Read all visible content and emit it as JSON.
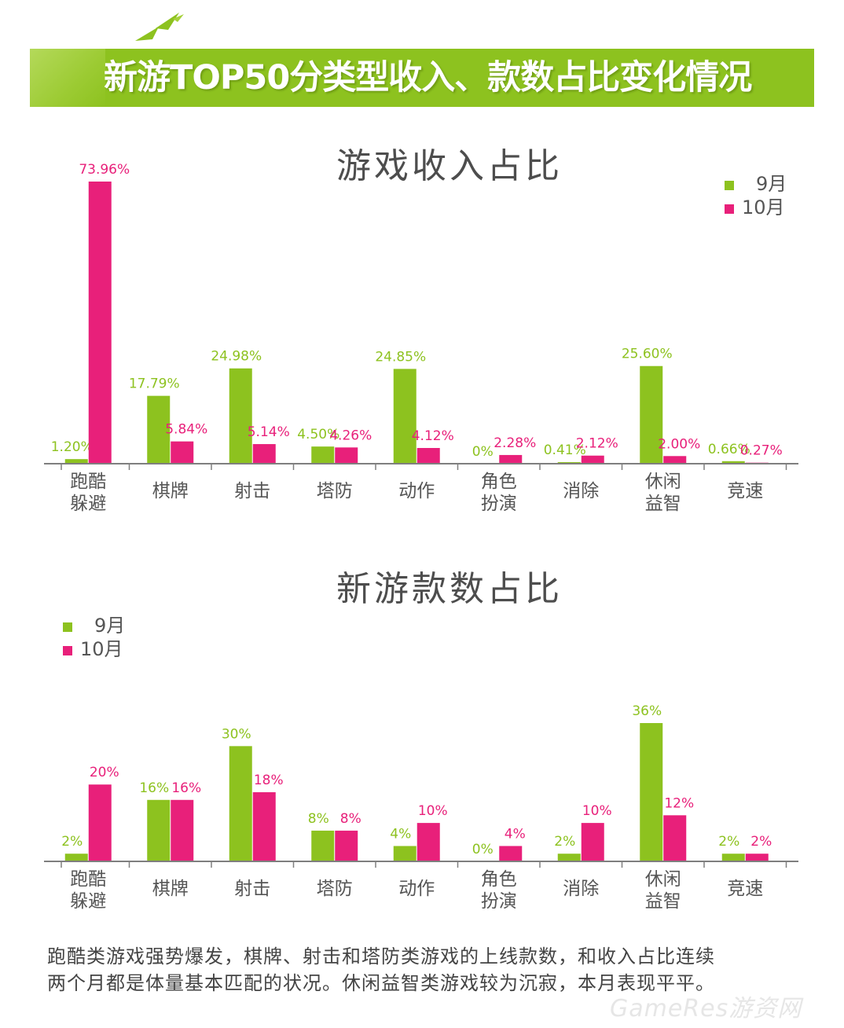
{
  "header": {
    "title": "新游TOP50分类型收入、款数占比变化情况"
  },
  "colors": {
    "banner": "#8dc21f",
    "september": "#8dc21f",
    "october": "#e8207a",
    "axis": "#7f7f7f",
    "title_text": "#4d4d4d"
  },
  "chart_data": [
    {
      "type": "bar",
      "title": "游戏收入占比",
      "categories": [
        [
          "跑酷",
          "躲避"
        ],
        [
          "棋牌"
        ],
        [
          "射击"
        ],
        [
          "塔防"
        ],
        [
          "动作"
        ],
        [
          "角色",
          "扮演"
        ],
        [
          "消除"
        ],
        [
          "休闲",
          "益智"
        ],
        [
          "竞速"
        ]
      ],
      "series": [
        {
          "name": "9月",
          "values": [
            1.2,
            17.79,
            24.98,
            4.5,
            24.85,
            0,
            0.41,
            25.6,
            0.66
          ],
          "labels": [
            "1.20%",
            "17.79%",
            "24.98%",
            "4.50%",
            "24.85%",
            "0%",
            "0.41%",
            "25.60%",
            "0.66%"
          ]
        },
        {
          "name": "10月",
          "values": [
            73.96,
            5.84,
            5.14,
            4.26,
            4.12,
            2.28,
            2.12,
            2.0,
            0.27
          ],
          "labels": [
            "73.96%",
            "5.84%",
            "5.14%",
            "4.26%",
            "4.12%",
            "2.28%",
            "2.12%",
            "2.00%",
            "0.27%"
          ]
        }
      ],
      "legend_position": "top-right",
      "ylim": [
        0,
        73.96
      ],
      "grid": false
    },
    {
      "type": "bar",
      "title": "新游款数占比",
      "categories": [
        [
          "跑酷",
          "躲避"
        ],
        [
          "棋牌"
        ],
        [
          "射击"
        ],
        [
          "塔防"
        ],
        [
          "动作"
        ],
        [
          "角色",
          "扮演"
        ],
        [
          "消除"
        ],
        [
          "休闲",
          "益智"
        ],
        [
          "竞速"
        ]
      ],
      "series": [
        {
          "name": "9月",
          "values": [
            2,
            16,
            30,
            8,
            4,
            0,
            2,
            36,
            2
          ],
          "labels": [
            "2%",
            "16%",
            "30%",
            "8%",
            "4%",
            "0%",
            "2%",
            "36%",
            "2%"
          ]
        },
        {
          "name": "10月",
          "values": [
            20,
            16,
            18,
            8,
            10,
            4,
            10,
            12,
            2
          ],
          "labels": [
            "20%",
            "16%",
            "18%",
            "8%",
            "10%",
            "4%",
            "10%",
            "12%",
            "2%"
          ]
        }
      ],
      "legend_position": "top-left",
      "ylim": [
        0,
        36
      ],
      "grid": false
    }
  ],
  "summary": {
    "line1": "跑酷类游戏强势爆发，棋牌、射击和塔防类游戏的上线款数，和收入占比连续",
    "line2": "两个月都是体量基本匹配的状况。休闲益智类游戏较为沉寂，本月表现平平。"
  },
  "watermark": "GameRes游资网"
}
